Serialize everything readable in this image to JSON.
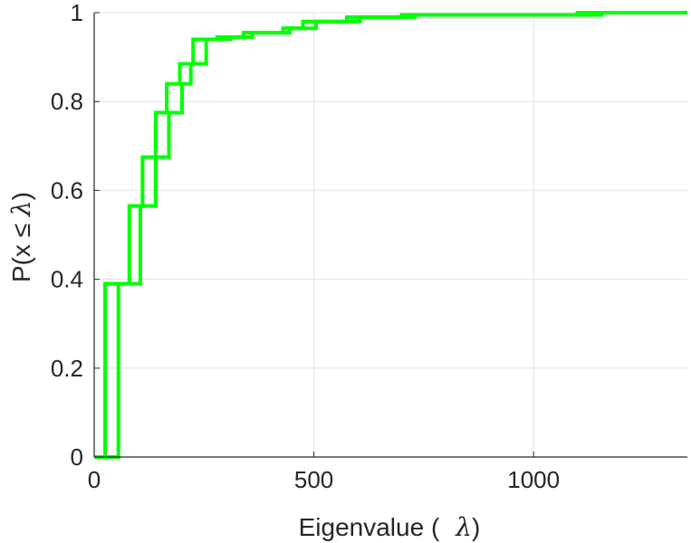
{
  "chart_data": {
    "type": "line",
    "title": "",
    "xlabel_parts": [
      "Eigenvalue (",
      "λ",
      ")"
    ],
    "ylabel_parts": [
      "P(x ",
      "≤",
      " ",
      "λ",
      ")"
    ],
    "xlim": [
      0,
      1350
    ],
    "ylim": [
      0,
      1
    ],
    "xticks": [
      0,
      500,
      1000
    ],
    "yticks": [
      0,
      0.2,
      0.4,
      0.6,
      0.8,
      1
    ],
    "xtick_labels": [
      "0",
      "500",
      "1000"
    ],
    "ytick_labels": [
      "0",
      "0.2",
      "0.4",
      "0.6",
      "0.8",
      "1"
    ],
    "grid": true,
    "legend": "none",
    "line_color": "#00ff00",
    "series": [
      {
        "x": [
          0,
          25,
          25,
          80,
          80,
          110,
          110,
          140,
          140,
          165,
          165,
          195,
          195,
          225,
          225,
          280,
          280,
          340,
          340,
          430,
          430,
          475,
          475,
          575,
          575,
          700,
          700,
          1100,
          1100,
          1350
        ],
        "y": [
          0,
          0,
          0.39,
          0.39,
          0.565,
          0.565,
          0.675,
          0.675,
          0.775,
          0.775,
          0.84,
          0.84,
          0.885,
          0.885,
          0.94,
          0.94,
          0.945,
          0.945,
          0.955,
          0.955,
          0.965,
          0.965,
          0.98,
          0.98,
          0.99,
          0.99,
          0.995,
          0.995,
          1,
          1
        ]
      },
      {
        "x": [
          0,
          55,
          55,
          105,
          105,
          140,
          140,
          170,
          170,
          200,
          200,
          220,
          220,
          255,
          255,
          310,
          310,
          360,
          360,
          445,
          445,
          505,
          505,
          605,
          605,
          730,
          730,
          1155,
          1155,
          1350
        ],
        "y": [
          0,
          0,
          0.39,
          0.39,
          0.565,
          0.565,
          0.675,
          0.675,
          0.775,
          0.775,
          0.84,
          0.84,
          0.885,
          0.885,
          0.94,
          0.94,
          0.945,
          0.945,
          0.955,
          0.955,
          0.965,
          0.965,
          0.98,
          0.98,
          0.99,
          0.99,
          0.995,
          0.995,
          1,
          1
        ]
      }
    ]
  }
}
